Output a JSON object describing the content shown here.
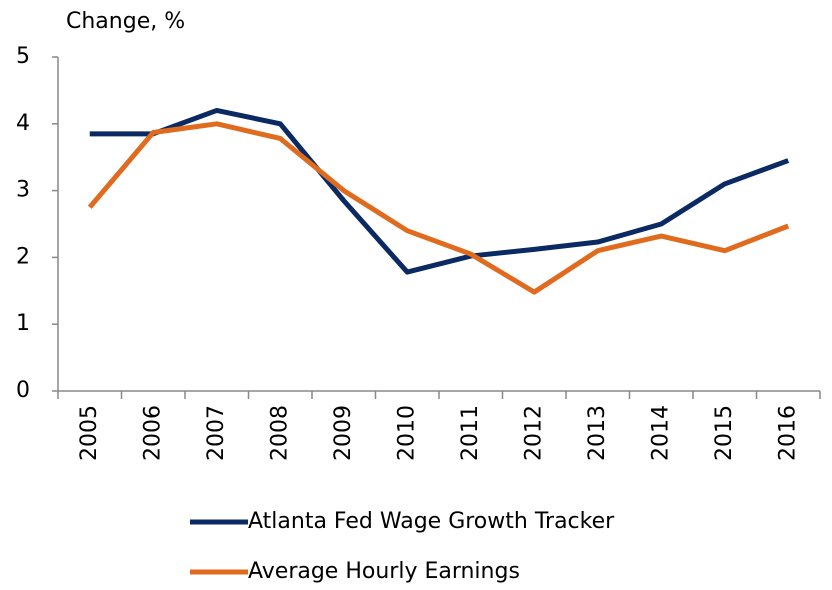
{
  "chart_data": {
    "type": "line",
    "y_axis_label": "Change, %",
    "categories": [
      "2005",
      "2006",
      "2007",
      "2008",
      "2009",
      "2010",
      "2011",
      "2012",
      "2013",
      "2014",
      "2015",
      "2016"
    ],
    "series": [
      {
        "name": "Atlanta Fed Wage Growth Tracker",
        "color": "#0b2a63",
        "values": [
          3.85,
          3.85,
          4.2,
          4.0,
          2.85,
          1.78,
          2.02,
          2.12,
          2.23,
          2.5,
          3.1,
          3.45
        ]
      },
      {
        "name": "Average Hourly Earnings",
        "color": "#e06b1f",
        "values": [
          2.75,
          3.87,
          4.0,
          3.78,
          3.0,
          2.4,
          2.05,
          1.48,
          2.1,
          2.32,
          2.1,
          2.47
        ]
      }
    ],
    "ylim": [
      0,
      5
    ],
    "yticks": [
      0,
      1,
      2,
      3,
      4,
      5
    ],
    "grid": false,
    "legend": "bottom"
  }
}
